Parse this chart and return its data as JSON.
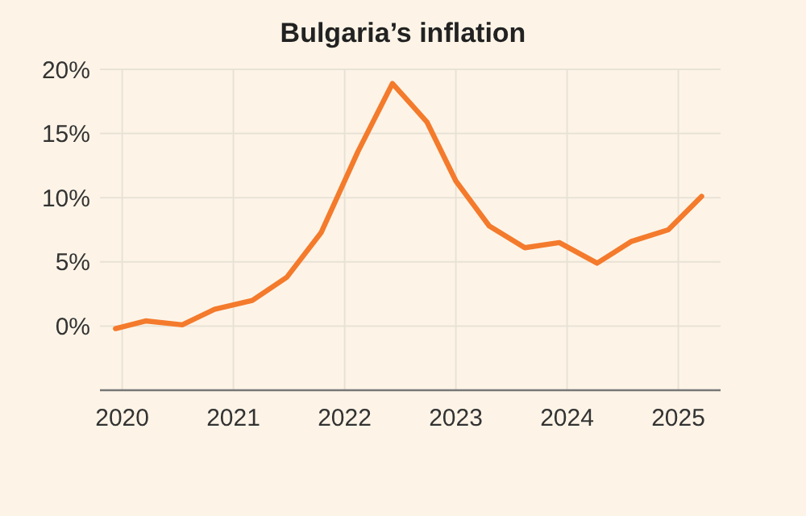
{
  "chart_data": {
    "type": "line",
    "title": "Bulgaria’s inflation",
    "x": [
      2019.94,
      2020.21,
      2020.54,
      2020.83,
      2021.17,
      2021.48,
      2021.79,
      2022.12,
      2022.43,
      2022.74,
      2023.0,
      2023.3,
      2023.62,
      2023.93,
      2024.27,
      2024.58,
      2024.91,
      2025.21
    ],
    "series": [
      {
        "color": "#f47a2c",
        "values": [
          -0.2,
          0.4,
          0.1,
          1.3,
          2.0,
          3.8,
          7.3,
          13.6,
          18.9,
          15.9,
          11.3,
          7.8,
          6.1,
          6.5,
          4.9,
          6.6,
          7.5,
          10.1
        ]
      }
    ],
    "xlim": [
      2019.8,
      2025.38
    ],
    "xticks": [
      2020,
      2021,
      2022,
      2023,
      2024,
      2025
    ],
    "ylim": [
      -5,
      20
    ],
    "yticks": [
      {
        "value": 0,
        "label": "0%"
      },
      {
        "value": 5,
        "label": "5%"
      },
      {
        "value": 10,
        "label": "10%"
      },
      {
        "value": 15,
        "label": "15%"
      },
      {
        "value": 20,
        "label": "20%"
      }
    ],
    "grid": true,
    "marker": "none",
    "line_style": "solid"
  }
}
